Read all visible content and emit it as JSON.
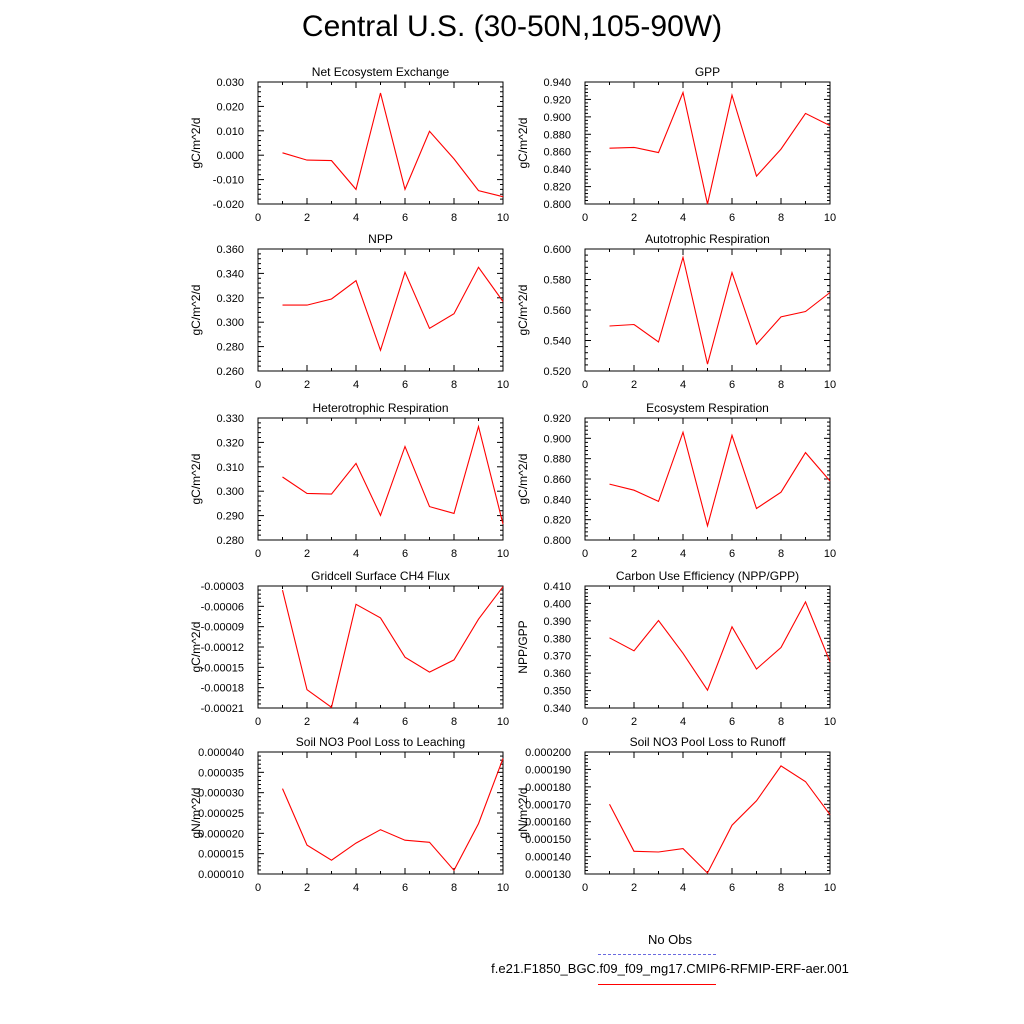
{
  "title": "Central U.S. (30-50N,105-90W)",
  "colors": {
    "line": "#ff0000",
    "axis": "#000000",
    "obs_line": "#6a6ae0",
    "model_line": "#ff0000"
  },
  "legend": {
    "obs_label": "No Obs",
    "model_label": "f.e21.F1850_BGC.f09_f09_mg17.CMIP6-RFMIP-ERF-aer.001"
  },
  "chart_data": [
    {
      "type": "line",
      "title": "Net Ecosystem Exchange",
      "ylabel": "gC/m^2/d",
      "xlim": [
        0,
        10
      ],
      "xticks": [
        0,
        2,
        4,
        6,
        8,
        10
      ],
      "ylim": [
        -0.02,
        0.03
      ],
      "yticks": [
        -0.02,
        -0.01,
        0.0,
        0.01,
        0.02,
        0.03
      ],
      "ytick_labels": [
        "-0.020",
        "-0.010",
        "0.000",
        "0.010",
        "0.020",
        "0.030"
      ],
      "x": [
        1,
        2,
        3,
        4,
        5,
        6,
        7,
        8,
        9,
        10
      ],
      "y": [
        0.001,
        -0.002,
        -0.0022,
        -0.014,
        0.0255,
        -0.014,
        0.0098,
        -0.0015,
        -0.0145,
        -0.017
      ]
    },
    {
      "type": "line",
      "title": "GPP",
      "ylabel": "gC/m^2/d",
      "xlim": [
        0,
        10
      ],
      "xticks": [
        0,
        2,
        4,
        6,
        8,
        10
      ],
      "ylim": [
        0.8,
        0.94
      ],
      "yticks": [
        0.8,
        0.82,
        0.84,
        0.86,
        0.88,
        0.9,
        0.92,
        0.94
      ],
      "ytick_labels": [
        "0.800",
        "0.820",
        "0.840",
        "0.860",
        "0.880",
        "0.900",
        "0.920",
        "0.940"
      ],
      "x": [
        1,
        2,
        3,
        4,
        5,
        6,
        7,
        8,
        9,
        10
      ],
      "y": [
        0.864,
        0.865,
        0.859,
        0.928,
        0.8,
        0.925,
        0.832,
        0.863,
        0.904,
        0.89
      ]
    },
    {
      "type": "line",
      "title": "NPP",
      "ylabel": "gC/m^2/d",
      "xlim": [
        0,
        10
      ],
      "xticks": [
        0,
        2,
        4,
        6,
        8,
        10
      ],
      "ylim": [
        0.26,
        0.36
      ],
      "yticks": [
        0.26,
        0.28,
        0.3,
        0.32,
        0.34,
        0.36
      ],
      "ytick_labels": [
        "0.260",
        "0.280",
        "0.300",
        "0.320",
        "0.340",
        "0.360"
      ],
      "x": [
        1,
        2,
        3,
        4,
        5,
        6,
        7,
        8,
        9,
        10
      ],
      "y": [
        0.314,
        0.314,
        0.319,
        0.334,
        0.277,
        0.341,
        0.295,
        0.307,
        0.345,
        0.317
      ]
    },
    {
      "type": "line",
      "title": "Autotrophic Respiration",
      "ylabel": "gC/m^2/d",
      "xlim": [
        0,
        10
      ],
      "xticks": [
        0,
        2,
        4,
        6,
        8,
        10
      ],
      "ylim": [
        0.52,
        0.6
      ],
      "yticks": [
        0.52,
        0.54,
        0.56,
        0.58,
        0.6
      ],
      "ytick_labels": [
        "0.520",
        "0.540",
        "0.560",
        "0.580",
        "0.600"
      ],
      "x": [
        1,
        2,
        3,
        4,
        5,
        6,
        7,
        8,
        9,
        10
      ],
      "y": [
        0.5495,
        0.5505,
        0.539,
        0.5945,
        0.5245,
        0.5845,
        0.5375,
        0.5555,
        0.559,
        0.5715
      ]
    },
    {
      "type": "line",
      "title": "Heterotrophic Respiration",
      "ylabel": "gC/m^2/d",
      "xlim": [
        0,
        10
      ],
      "xticks": [
        0,
        2,
        4,
        6,
        8,
        10
      ],
      "ylim": [
        0.28,
        0.33
      ],
      "yticks": [
        0.28,
        0.29,
        0.3,
        0.31,
        0.32,
        0.33
      ],
      "ytick_labels": [
        "0.280",
        "0.290",
        "0.300",
        "0.310",
        "0.320",
        "0.330"
      ],
      "x": [
        1,
        2,
        3,
        4,
        5,
        6,
        7,
        8,
        9,
        10
      ],
      "y": [
        0.3058,
        0.2991,
        0.2988,
        0.3114,
        0.2901,
        0.3183,
        0.2937,
        0.2909,
        0.3265,
        0.2865
      ]
    },
    {
      "type": "line",
      "title": "Ecosystem Respiration",
      "ylabel": "gC/m^2/d",
      "xlim": [
        0,
        10
      ],
      "xticks": [
        0,
        2,
        4,
        6,
        8,
        10
      ],
      "ylim": [
        0.8,
        0.92
      ],
      "yticks": [
        0.8,
        0.82,
        0.84,
        0.86,
        0.88,
        0.9,
        0.92
      ],
      "ytick_labels": [
        "0.800",
        "0.820",
        "0.840",
        "0.860",
        "0.880",
        "0.900",
        "0.920"
      ],
      "x": [
        1,
        2,
        3,
        4,
        5,
        6,
        7,
        8,
        9,
        10
      ],
      "y": [
        0.855,
        0.849,
        0.838,
        0.906,
        0.814,
        0.903,
        0.831,
        0.847,
        0.886,
        0.858
      ]
    },
    {
      "type": "line",
      "title": "Gridcell Surface CH4 Flux",
      "ylabel": "gC/m^2/d",
      "xlim": [
        0,
        10
      ],
      "xticks": [
        0,
        2,
        4,
        6,
        8,
        10
      ],
      "ylim": [
        -0.00021,
        -3e-05
      ],
      "yticks": [
        -0.00021,
        -0.00018,
        -0.00015,
        -0.00012,
        -9e-05,
        -6e-05,
        -3e-05
      ],
      "ytick_labels": [
        "-0.00021",
        "-0.00018",
        "-0.00015",
        "-0.00012",
        "-0.00009",
        "-0.00006",
        "-0.00003"
      ],
      "x": [
        1,
        2,
        3,
        4,
        5,
        6,
        7,
        8,
        9,
        10
      ],
      "y": [
        -3.6e-05,
        -0.000183,
        -0.000209,
        -5.7e-05,
        -7.7e-05,
        -0.000135,
        -0.000157,
        -0.000139,
        -7.9e-05,
        -3.1e-05
      ]
    },
    {
      "type": "line",
      "title": "Carbon Use Efficiency (NPP/GPP)",
      "ylabel": "NPP/GPP",
      "xlim": [
        0,
        10
      ],
      "xticks": [
        0,
        2,
        4,
        6,
        8,
        10
      ],
      "ylim": [
        0.34,
        0.41
      ],
      "yticks": [
        0.34,
        0.35,
        0.36,
        0.37,
        0.38,
        0.39,
        0.4,
        0.41
      ],
      "ytick_labels": [
        "0.340",
        "0.350",
        "0.360",
        "0.370",
        "0.380",
        "0.390",
        "0.400",
        "0.410"
      ],
      "x": [
        1,
        2,
        3,
        4,
        5,
        6,
        7,
        8,
        9,
        10
      ],
      "y": [
        0.3803,
        0.3728,
        0.3902,
        0.3714,
        0.3502,
        0.3866,
        0.3624,
        0.3747,
        0.4009,
        0.3665
      ]
    },
    {
      "type": "line",
      "title": "Soil NO3 Pool Loss to Leaching",
      "ylabel": "gN/m^2/d",
      "xlim": [
        0,
        10
      ],
      "xticks": [
        0,
        2,
        4,
        6,
        8,
        10
      ],
      "ylim": [
        1e-05,
        4e-05
      ],
      "yticks": [
        1e-05,
        1.5e-05,
        2e-05,
        2.5e-05,
        3e-05,
        3.5e-05,
        4e-05
      ],
      "ytick_labels": [
        "0.000010",
        "0.000015",
        "0.000020",
        "0.000025",
        "0.000030",
        "0.000035",
        "0.000040"
      ],
      "x": [
        1,
        2,
        3,
        4,
        5,
        6,
        7,
        8,
        9,
        10
      ],
      "y": [
        3.1e-05,
        1.71e-05,
        1.34e-05,
        1.76e-05,
        2.09e-05,
        1.83e-05,
        1.78e-05,
        1.09e-05,
        2.24e-05,
        3.84e-05
      ]
    },
    {
      "type": "line",
      "title": "Soil NO3 Pool Loss to Runoff",
      "ylabel": "gN/m^2/d",
      "xlim": [
        0,
        10
      ],
      "xticks": [
        0,
        2,
        4,
        6,
        8,
        10
      ],
      "ylim": [
        0.00013,
        0.0002
      ],
      "yticks": [
        0.00013,
        0.00014,
        0.00015,
        0.00016,
        0.00017,
        0.00018,
        0.00019,
        0.0002
      ],
      "ytick_labels": [
        "0.000130",
        "0.000140",
        "0.000150",
        "0.000160",
        "0.000170",
        "0.000180",
        "0.000190",
        "0.000200"
      ],
      "x": [
        1,
        2,
        3,
        4,
        5,
        6,
        7,
        8,
        9,
        10
      ],
      "y": [
        0.00017,
        0.000143,
        0.0001426,
        0.0001446,
        0.0001306,
        0.000158,
        0.000172,
        0.000192,
        0.000183,
        0.000164
      ]
    }
  ]
}
